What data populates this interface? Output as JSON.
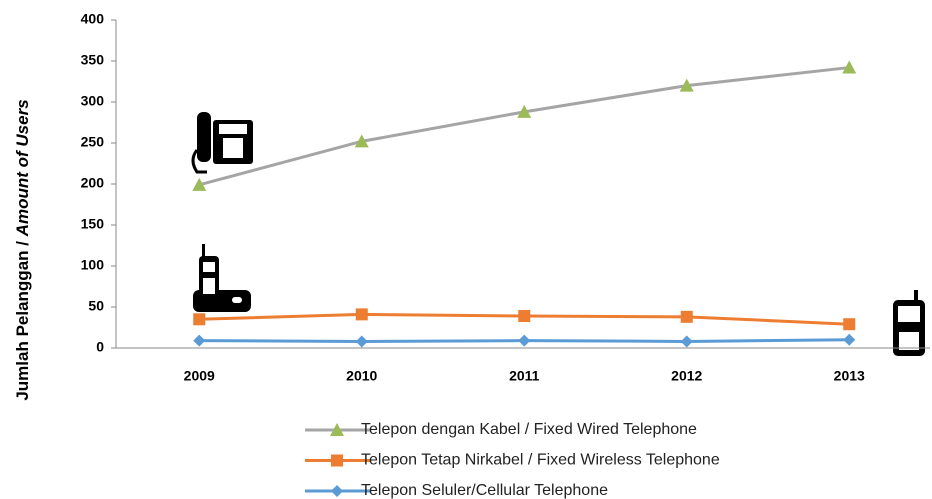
{
  "chart_data": {
    "type": "line",
    "y_label": [
      "Jumlah Pelanggan / ",
      "Amount of Users"
    ],
    "categories": [
      "2009",
      "2010",
      "2011",
      "2012",
      "2013"
    ],
    "series": [
      {
        "name": "Telepon dengan Kabel / Fixed Wired Telephone",
        "color": "#a5a5a5",
        "marker": "triangle",
        "marker_color": "#9bbb59",
        "values": [
          199,
          252,
          288,
          320,
          342
        ]
      },
      {
        "name": "Telepon Tetap Nirkabel / Fixed Wireless Telephone",
        "color": "#ed7d31",
        "marker": "square",
        "marker_color": "#ed7d31",
        "values": [
          35,
          41,
          39,
          38,
          29
        ]
      },
      {
        "name": "Telepon Seluler/Cellular Telephone",
        "color": "#5b9bd5",
        "marker": "diamond",
        "marker_color": "#5b9bd5",
        "values": [
          9,
          8,
          9,
          8,
          10
        ]
      }
    ],
    "ylim": [
      0,
      400
    ],
    "yticks": [
      0,
      50,
      100,
      150,
      200,
      250,
      300,
      350,
      400
    ],
    "grid": false
  }
}
